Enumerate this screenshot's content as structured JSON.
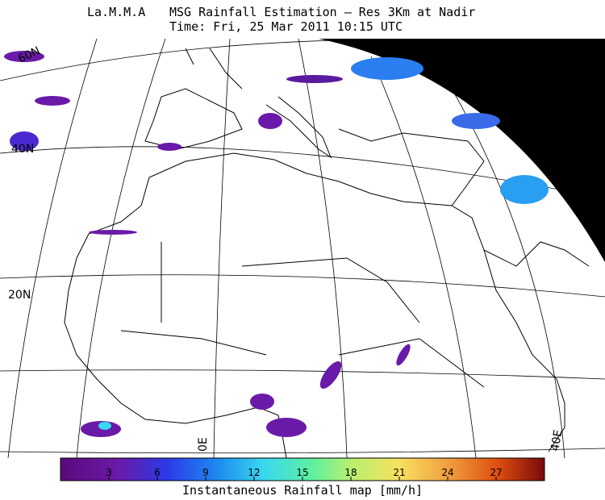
{
  "header": {
    "org": "La.M.M.A",
    "title": "MSG Rainfall Estimation — Res 3Km at Nadir",
    "time": "Time: Fri, 25 Mar 2011 10:15 UTC"
  },
  "grid_labels": {
    "lat60": "60N",
    "lat40": "40N",
    "lat20": "20N",
    "lon0": "0E",
    "lon40": "40E"
  },
  "colorbar": {
    "range": [
      0,
      30
    ],
    "ticks": [
      3,
      6,
      9,
      12,
      15,
      18,
      21,
      24,
      27
    ],
    "label": "Instantaneous Rainfall map [mm/h]"
  }
}
